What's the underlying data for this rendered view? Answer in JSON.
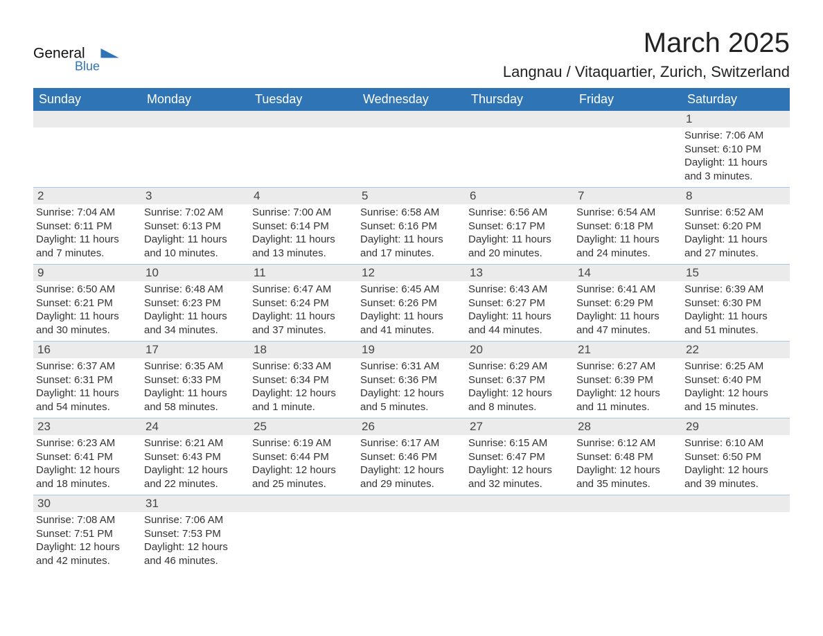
{
  "brand": {
    "name_part1": "General",
    "name_part2": "Blue",
    "logo_color": "#2f75b5",
    "text_color": "#111111"
  },
  "title": "March 2025",
  "location": "Langnau / Vitaquartier, Zurich, Switzerland",
  "colors": {
    "header_bg": "#2f75b5",
    "header_text": "#ffffff",
    "daynum_bg": "#ebebeb",
    "row_border": "#a8c7e6",
    "body_text": "#333333"
  },
  "weekdays": [
    "Sunday",
    "Monday",
    "Tuesday",
    "Wednesday",
    "Thursday",
    "Friday",
    "Saturday"
  ],
  "weeks": [
    [
      {
        "empty": true
      },
      {
        "empty": true
      },
      {
        "empty": true
      },
      {
        "empty": true
      },
      {
        "empty": true
      },
      {
        "empty": true
      },
      {
        "day": "1",
        "sunrise": "Sunrise: 7:06 AM",
        "sunset": "Sunset: 6:10 PM",
        "daylight": "Daylight: 11 hours and 3 minutes."
      }
    ],
    [
      {
        "day": "2",
        "sunrise": "Sunrise: 7:04 AM",
        "sunset": "Sunset: 6:11 PM",
        "daylight": "Daylight: 11 hours and 7 minutes."
      },
      {
        "day": "3",
        "sunrise": "Sunrise: 7:02 AM",
        "sunset": "Sunset: 6:13 PM",
        "daylight": "Daylight: 11 hours and 10 minutes."
      },
      {
        "day": "4",
        "sunrise": "Sunrise: 7:00 AM",
        "sunset": "Sunset: 6:14 PM",
        "daylight": "Daylight: 11 hours and 13 minutes."
      },
      {
        "day": "5",
        "sunrise": "Sunrise: 6:58 AM",
        "sunset": "Sunset: 6:16 PM",
        "daylight": "Daylight: 11 hours and 17 minutes."
      },
      {
        "day": "6",
        "sunrise": "Sunrise: 6:56 AM",
        "sunset": "Sunset: 6:17 PM",
        "daylight": "Daylight: 11 hours and 20 minutes."
      },
      {
        "day": "7",
        "sunrise": "Sunrise: 6:54 AM",
        "sunset": "Sunset: 6:18 PM",
        "daylight": "Daylight: 11 hours and 24 minutes."
      },
      {
        "day": "8",
        "sunrise": "Sunrise: 6:52 AM",
        "sunset": "Sunset: 6:20 PM",
        "daylight": "Daylight: 11 hours and 27 minutes."
      }
    ],
    [
      {
        "day": "9",
        "sunrise": "Sunrise: 6:50 AM",
        "sunset": "Sunset: 6:21 PM",
        "daylight": "Daylight: 11 hours and 30 minutes."
      },
      {
        "day": "10",
        "sunrise": "Sunrise: 6:48 AM",
        "sunset": "Sunset: 6:23 PM",
        "daylight": "Daylight: 11 hours and 34 minutes."
      },
      {
        "day": "11",
        "sunrise": "Sunrise: 6:47 AM",
        "sunset": "Sunset: 6:24 PM",
        "daylight": "Daylight: 11 hours and 37 minutes."
      },
      {
        "day": "12",
        "sunrise": "Sunrise: 6:45 AM",
        "sunset": "Sunset: 6:26 PM",
        "daylight": "Daylight: 11 hours and 41 minutes."
      },
      {
        "day": "13",
        "sunrise": "Sunrise: 6:43 AM",
        "sunset": "Sunset: 6:27 PM",
        "daylight": "Daylight: 11 hours and 44 minutes."
      },
      {
        "day": "14",
        "sunrise": "Sunrise: 6:41 AM",
        "sunset": "Sunset: 6:29 PM",
        "daylight": "Daylight: 11 hours and 47 minutes."
      },
      {
        "day": "15",
        "sunrise": "Sunrise: 6:39 AM",
        "sunset": "Sunset: 6:30 PM",
        "daylight": "Daylight: 11 hours and 51 minutes."
      }
    ],
    [
      {
        "day": "16",
        "sunrise": "Sunrise: 6:37 AM",
        "sunset": "Sunset: 6:31 PM",
        "daylight": "Daylight: 11 hours and 54 minutes."
      },
      {
        "day": "17",
        "sunrise": "Sunrise: 6:35 AM",
        "sunset": "Sunset: 6:33 PM",
        "daylight": "Daylight: 11 hours and 58 minutes."
      },
      {
        "day": "18",
        "sunrise": "Sunrise: 6:33 AM",
        "sunset": "Sunset: 6:34 PM",
        "daylight": "Daylight: 12 hours and 1 minute."
      },
      {
        "day": "19",
        "sunrise": "Sunrise: 6:31 AM",
        "sunset": "Sunset: 6:36 PM",
        "daylight": "Daylight: 12 hours and 5 minutes."
      },
      {
        "day": "20",
        "sunrise": "Sunrise: 6:29 AM",
        "sunset": "Sunset: 6:37 PM",
        "daylight": "Daylight: 12 hours and 8 minutes."
      },
      {
        "day": "21",
        "sunrise": "Sunrise: 6:27 AM",
        "sunset": "Sunset: 6:39 PM",
        "daylight": "Daylight: 12 hours and 11 minutes."
      },
      {
        "day": "22",
        "sunrise": "Sunrise: 6:25 AM",
        "sunset": "Sunset: 6:40 PM",
        "daylight": "Daylight: 12 hours and 15 minutes."
      }
    ],
    [
      {
        "day": "23",
        "sunrise": "Sunrise: 6:23 AM",
        "sunset": "Sunset: 6:41 PM",
        "daylight": "Daylight: 12 hours and 18 minutes."
      },
      {
        "day": "24",
        "sunrise": "Sunrise: 6:21 AM",
        "sunset": "Sunset: 6:43 PM",
        "daylight": "Daylight: 12 hours and 22 minutes."
      },
      {
        "day": "25",
        "sunrise": "Sunrise: 6:19 AM",
        "sunset": "Sunset: 6:44 PM",
        "daylight": "Daylight: 12 hours and 25 minutes."
      },
      {
        "day": "26",
        "sunrise": "Sunrise: 6:17 AM",
        "sunset": "Sunset: 6:46 PM",
        "daylight": "Daylight: 12 hours and 29 minutes."
      },
      {
        "day": "27",
        "sunrise": "Sunrise: 6:15 AM",
        "sunset": "Sunset: 6:47 PM",
        "daylight": "Daylight: 12 hours and 32 minutes."
      },
      {
        "day": "28",
        "sunrise": "Sunrise: 6:12 AM",
        "sunset": "Sunset: 6:48 PM",
        "daylight": "Daylight: 12 hours and 35 minutes."
      },
      {
        "day": "29",
        "sunrise": "Sunrise: 6:10 AM",
        "sunset": "Sunset: 6:50 PM",
        "daylight": "Daylight: 12 hours and 39 minutes."
      }
    ],
    [
      {
        "day": "30",
        "sunrise": "Sunrise: 7:08 AM",
        "sunset": "Sunset: 7:51 PM",
        "daylight": "Daylight: 12 hours and 42 minutes."
      },
      {
        "day": "31",
        "sunrise": "Sunrise: 7:06 AM",
        "sunset": "Sunset: 7:53 PM",
        "daylight": "Daylight: 12 hours and 46 minutes."
      },
      {
        "empty": true
      },
      {
        "empty": true
      },
      {
        "empty": true
      },
      {
        "empty": true
      },
      {
        "empty": true
      }
    ]
  ]
}
